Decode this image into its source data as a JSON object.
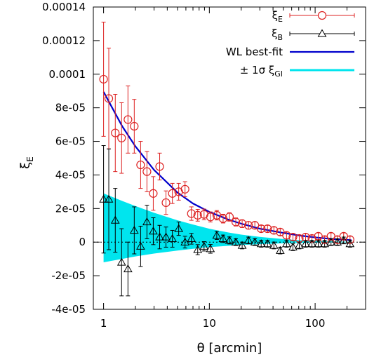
{
  "chart_data": {
    "type": "scatter",
    "xlabel": "θ [arcmin]",
    "ylabel": {
      "main": "ξ",
      "sub": "E"
    },
    "x_scale": "log",
    "xlim": [
      0.8,
      300
    ],
    "ylim": [
      -4e-05,
      0.00014
    ],
    "x_ticks": [
      {
        "value": 1,
        "label": "1"
      },
      {
        "value": 10,
        "label": "10"
      },
      {
        "value": 100,
        "label": "100"
      }
    ],
    "y_ticks": [
      {
        "value": -4e-05,
        "label": "-4e-05"
      },
      {
        "value": -2e-05,
        "label": "-2e-05"
      },
      {
        "value": 0,
        "label": "0"
      },
      {
        "value": 2e-05,
        "label": "2e-05"
      },
      {
        "value": 4e-05,
        "label": "4e-05"
      },
      {
        "value": 6e-05,
        "label": "6e-05"
      },
      {
        "value": 8e-05,
        "label": "8e-05"
      },
      {
        "value": 0.0001,
        "label": "0.0001"
      },
      {
        "value": 0.00012,
        "label": "0.00012"
      },
      {
        "value": 0.00014,
        "label": "0.00014"
      }
    ],
    "legend": {
      "placement": "top-right",
      "entries": [
        {
          "label": "ξ",
          "sub": "E",
          "style": "circle-errorbar",
          "color": "#dd2222"
        },
        {
          "label": "ξ",
          "sub": "B",
          "style": "triangle-errorbar",
          "color": "#000000"
        },
        {
          "label": "WL best-fit",
          "sub": "",
          "style": "line",
          "color": "#0000cc"
        },
        {
          "label": "± 1σ ξ",
          "sub": "GI",
          "style": "fill",
          "color": "#00e5ee"
        }
      ]
    },
    "series": [
      {
        "name": "ξE",
        "marker": "circle",
        "color": "#dd2222",
        "x": [
          1.0,
          1.12,
          1.29,
          1.48,
          1.7,
          1.95,
          2.24,
          2.57,
          2.95,
          3.39,
          3.89,
          4.47,
          5.13,
          5.89,
          6.76,
          7.76,
          8.91,
          10.23,
          11.75,
          13.49,
          15.49,
          17.78,
          20.42,
          23.44,
          26.92,
          30.9,
          35.48,
          40.74,
          46.77,
          53.7,
          61.66,
          70.79,
          81.28,
          93.33,
          107.2,
          123.0,
          141.3,
          162.2,
          186.2,
          213.8
        ],
        "y": [
          9.7e-05,
          8.55e-05,
          6.5e-05,
          6.2e-05,
          7.3e-05,
          6.9e-05,
          4.6e-05,
          4.2e-05,
          2.9e-05,
          4.5e-05,
          2.35e-05,
          2.9e-05,
          3e-05,
          3.15e-05,
          1.7e-05,
          1.6e-05,
          1.65e-05,
          1.5e-05,
          1.6e-05,
          1.4e-05,
          1.5e-05,
          1.2e-05,
          1.1e-05,
          1e-05,
          1e-05,
          8e-06,
          8e-06,
          7e-06,
          6e-06,
          4e-06,
          3e-06,
          2.2e-06,
          3e-06,
          2.2e-06,
          3.5e-06,
          1.5e-06,
          3.5e-06,
          1.5e-06,
          3.5e-06,
          1.5e-06
        ],
        "err": [
          3.4e-05,
          3e-05,
          2.3e-05,
          2.1e-05,
          2e-05,
          1.6e-05,
          1.4e-05,
          1.2e-05,
          1e-05,
          8e-06,
          7e-06,
          6e-06,
          5e-06,
          4.5e-06,
          4e-06,
          3.5e-06,
          3.2e-06,
          3e-06,
          2.8e-06,
          2.6e-06,
          2.5e-06,
          2.4e-06,
          2.3e-06,
          2.2e-06,
          2.1e-06,
          2e-06,
          2e-06,
          2e-06,
          2e-06,
          2e-06,
          2e-06,
          2e-06,
          2e-06,
          2e-06,
          2e-06,
          2e-06,
          2e-06,
          2e-06,
          2e-06,
          2e-06
        ]
      },
      {
        "name": "ξB",
        "marker": "triangle",
        "color": "#000000",
        "x": [
          1.0,
          1.12,
          1.29,
          1.48,
          1.7,
          1.95,
          2.24,
          2.57,
          2.95,
          3.39,
          3.89,
          4.47,
          5.13,
          5.89,
          6.76,
          7.76,
          8.91,
          10.23,
          11.75,
          13.49,
          15.49,
          17.78,
          20.42,
          23.44,
          26.92,
          30.9,
          35.48,
          40.74,
          46.77,
          53.7,
          61.66,
          70.79,
          81.28,
          93.33,
          107.2,
          123.0,
          141.3,
          162.2,
          186.2,
          213.8
        ],
        "y": [
          2.55e-05,
          2.55e-05,
          1.3e-05,
          -1.2e-05,
          -1.6e-05,
          7e-06,
          -2.5e-06,
          1.2e-05,
          6.5e-06,
          3e-06,
          3e-06,
          2e-06,
          8e-06,
          0.0,
          2e-06,
          -4.5e-06,
          -2.5e-06,
          -4e-06,
          4e-06,
          2e-06,
          1e-06,
          0.0,
          -2e-06,
          1e-06,
          0.0,
          -1e-06,
          -1e-06,
          -2e-06,
          -5e-06,
          -1e-06,
          -3e-06,
          -2e-06,
          -1e-06,
          -1e-06,
          -1e-06,
          -1e-06,
          0.0,
          0.0,
          1e-06,
          -1e-06
        ],
        "err": [
          3.2e-05,
          3e-05,
          1.9e-05,
          2e-05,
          1.6e-05,
          1.4e-05,
          1.2e-05,
          1e-05,
          8e-06,
          7e-06,
          6e-06,
          5e-06,
          4e-06,
          3.5e-06,
          3.2e-06,
          3e-06,
          2.8e-06,
          2.6e-06,
          2.4e-06,
          2.2e-06,
          2.1e-06,
          2e-06,
          2e-06,
          2e-06,
          2e-06,
          2e-06,
          2e-06,
          2e-06,
          2e-06,
          2e-06,
          2e-06,
          2e-06,
          2e-06,
          2e-06,
          2e-06,
          2e-06,
          2e-06,
          2e-06,
          2e-06,
          2e-06
        ]
      },
      {
        "name": "WL best-fit",
        "type": "line",
        "color": "#0000cc",
        "x": [
          1.0,
          1.5,
          2.0,
          3.0,
          5.0,
          7.0,
          10.0,
          15.0,
          20.0,
          30.0,
          50.0,
          70.0,
          100.0,
          150.0,
          220.0
        ],
        "y": [
          8.95e-05,
          6.9e-05,
          5.7e-05,
          4.3e-05,
          2.95e-05,
          2.3e-05,
          1.8e-05,
          1.35e-05,
          1.1e-05,
          8e-06,
          5.5e-06,
          4e-06,
          2.8e-06,
          1.8e-06,
          1.2e-06
        ]
      },
      {
        "name": "± 1σ ξGI",
        "type": "band",
        "color": "#00e5ee",
        "x": [
          1.0,
          1.5,
          2.0,
          3.0,
          5.0,
          7.0,
          10.0,
          15.0,
          20.0,
          30.0,
          50.0,
          70.0,
          100.0,
          150.0,
          220.0
        ],
        "upper": [
          2.9e-05,
          2.45e-05,
          2.15e-05,
          1.75e-05,
          1.3e-05,
          1.05e-05,
          8e-06,
          5.8e-06,
          4.5e-06,
          3.1e-06,
          1.8e-06,
          1.2e-06,
          8e-07,
          4e-07,
          2e-07
        ],
        "lower": [
          -1.2e-05,
          -1e-05,
          -8.5e-06,
          -6.8e-06,
          -5e-06,
          -4e-06,
          -3e-06,
          -2.2e-06,
          -1.7e-06,
          -1.2e-06,
          -7e-07,
          -5e-07,
          -3e-07,
          -1.5e-07,
          -1e-07
        ]
      }
    ]
  }
}
